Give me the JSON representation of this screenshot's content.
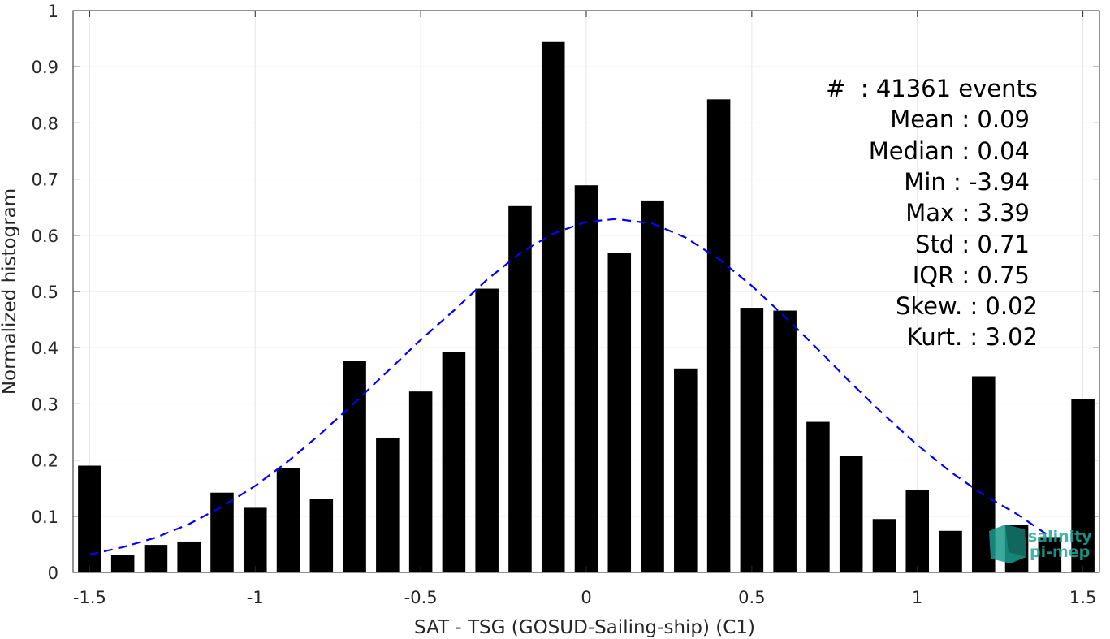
{
  "chart_data": {
    "type": "bar",
    "xlabel": "SAT - TSG (GOSUD-Sailing-ship) (C1)",
    "ylabel": "Normalized histogram",
    "xlim": [
      -1.55,
      1.55
    ],
    "ylim": [
      0,
      1
    ],
    "grid": true,
    "x_ticks": [
      "-1.5",
      "-1",
      "-0.5",
      "0",
      "0.5",
      "1",
      "1.5"
    ],
    "y_ticks": [
      "0",
      "0.1",
      "0.2",
      "0.3",
      "0.4",
      "0.5",
      "0.6",
      "0.7",
      "0.8",
      "0.9",
      "1"
    ],
    "bar_color": "#000000",
    "fit_color": "#0000ff",
    "bars": {
      "x": [
        -1.5,
        -1.4,
        -1.3,
        -1.2,
        -1.1,
        -1.0,
        -0.9,
        -0.8,
        -0.7,
        -0.6,
        -0.5,
        -0.4,
        -0.3,
        -0.2,
        -0.1,
        0.0,
        0.1,
        0.2,
        0.3,
        0.4,
        0.5,
        0.6,
        0.7,
        0.8,
        0.9,
        1.0,
        1.1,
        1.2,
        1.3,
        1.4,
        1.5
      ],
      "values": [
        0.19,
        0.031,
        0.049,
        0.055,
        0.142,
        0.115,
        0.185,
        0.131,
        0.377,
        0.239,
        0.322,
        0.392,
        0.505,
        0.652,
        0.944,
        0.689,
        0.568,
        0.662,
        0.363,
        0.842,
        0.471,
        0.466,
        0.268,
        0.207,
        0.095,
        0.146,
        0.074,
        0.349,
        0.084,
        0.063,
        0.308
      ]
    },
    "fit": {
      "name": "",
      "style": "dashed",
      "x": [
        -1.5,
        -1.4,
        -1.3,
        -1.2,
        -1.1,
        -1.0,
        -0.9,
        -0.8,
        -0.7,
        -0.6,
        -0.5,
        -0.4,
        -0.3,
        -0.2,
        -0.1,
        0.0,
        0.09,
        0.2,
        0.3,
        0.4,
        0.5,
        0.6,
        0.7,
        0.8,
        0.9,
        1.0,
        1.1,
        1.2,
        1.3,
        1.4
      ],
      "y": [
        0.032,
        0.045,
        0.062,
        0.086,
        0.117,
        0.154,
        0.198,
        0.248,
        0.302,
        0.358,
        0.414,
        0.466,
        0.521,
        0.568,
        0.603,
        0.624,
        0.629,
        0.621,
        0.596,
        0.558,
        0.51,
        0.455,
        0.397,
        0.337,
        0.28,
        0.227,
        0.179,
        0.138,
        0.104,
        0.064
      ]
    },
    "stats": {
      "count": "#  : 41361 events",
      "mean": "Mean : 0.09",
      "median": "Median : 0.04",
      "min": "Min : -3.94",
      "max": "Max : 3.39",
      "std": "Std : 0.71",
      "iqr": "IQR : 0.75",
      "skew": "Skew. : 0.02",
      "kurt": "Kurt. : 3.02"
    }
  },
  "logo": {
    "line1": "salinity",
    "line2": "pi-mep",
    "color": "#1fa99a"
  }
}
